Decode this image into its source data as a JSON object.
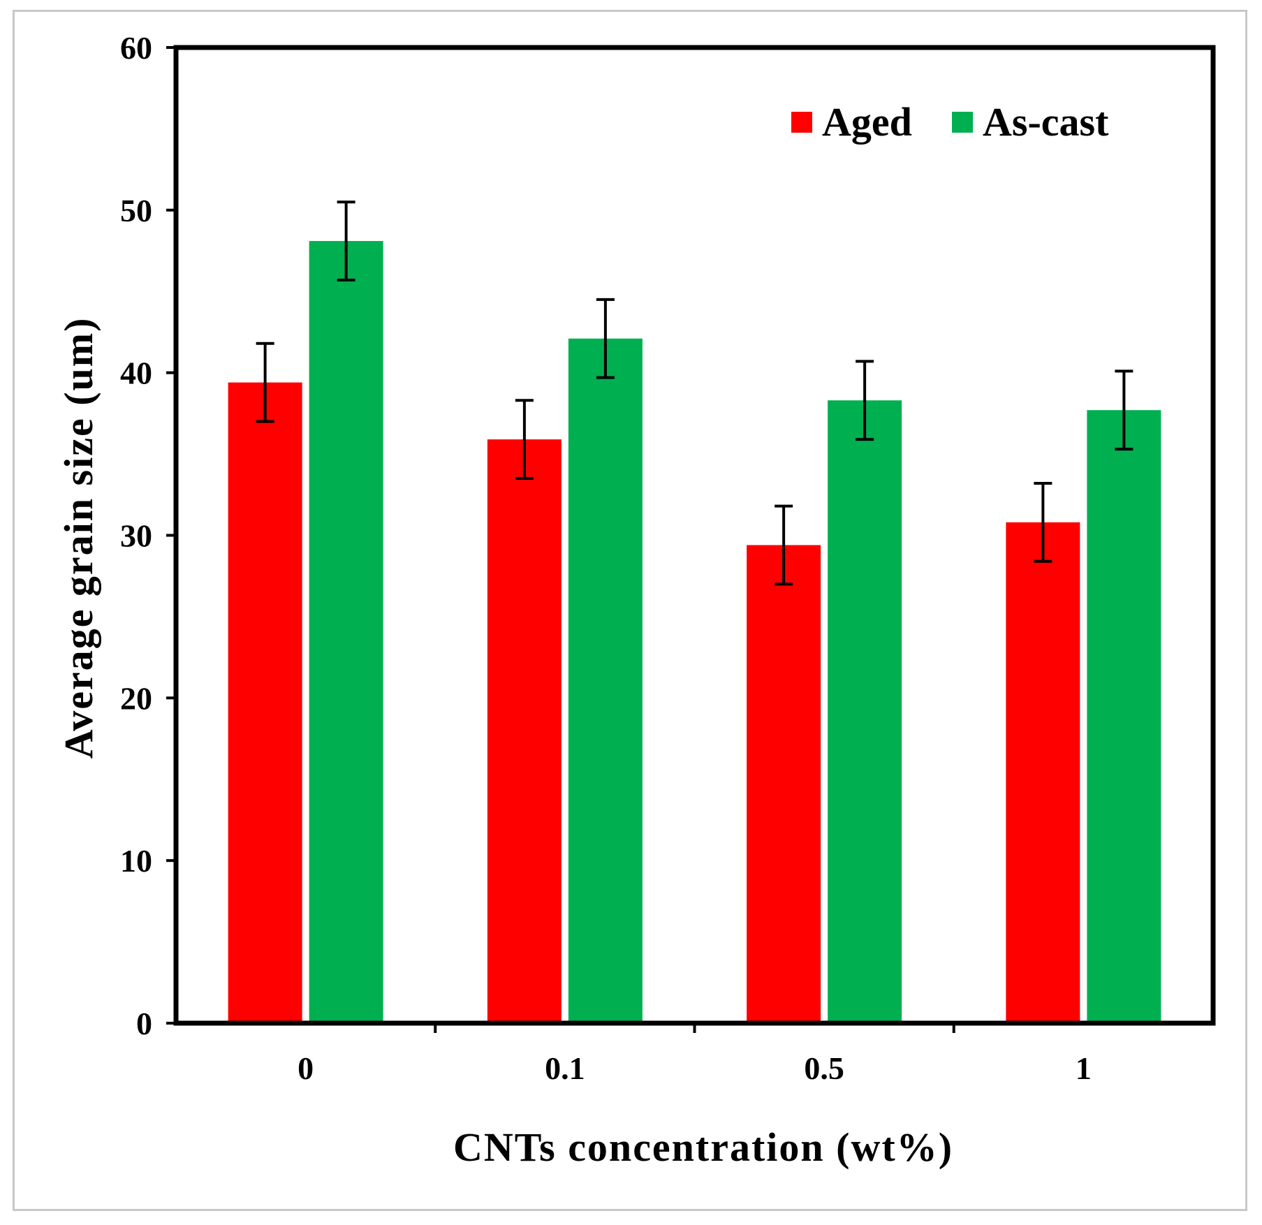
{
  "chart_data": {
    "type": "bar",
    "title": "",
    "xlabel": "CNTs concentration (wt%)",
    "ylabel": "Average grain size (um)",
    "categories": [
      "0",
      "0.1",
      "0.5",
      "1"
    ],
    "ylim": [
      0,
      60
    ],
    "yticks": [
      "0",
      "10",
      "20",
      "30",
      "40",
      "50",
      "60"
    ],
    "grid": false,
    "legend_position": "top-right",
    "series": [
      {
        "name": "Aged",
        "color": "#ff0000",
        "values": [
          39.4,
          35.9,
          29.4,
          30.8
        ],
        "errors": [
          2.4,
          2.4,
          2.4,
          2.4
        ]
      },
      {
        "name": "As-cast",
        "color": "#00b050",
        "values": [
          48.1,
          42.1,
          38.3,
          37.7
        ],
        "errors": [
          2.4,
          2.4,
          2.4,
          2.4
        ]
      }
    ]
  }
}
